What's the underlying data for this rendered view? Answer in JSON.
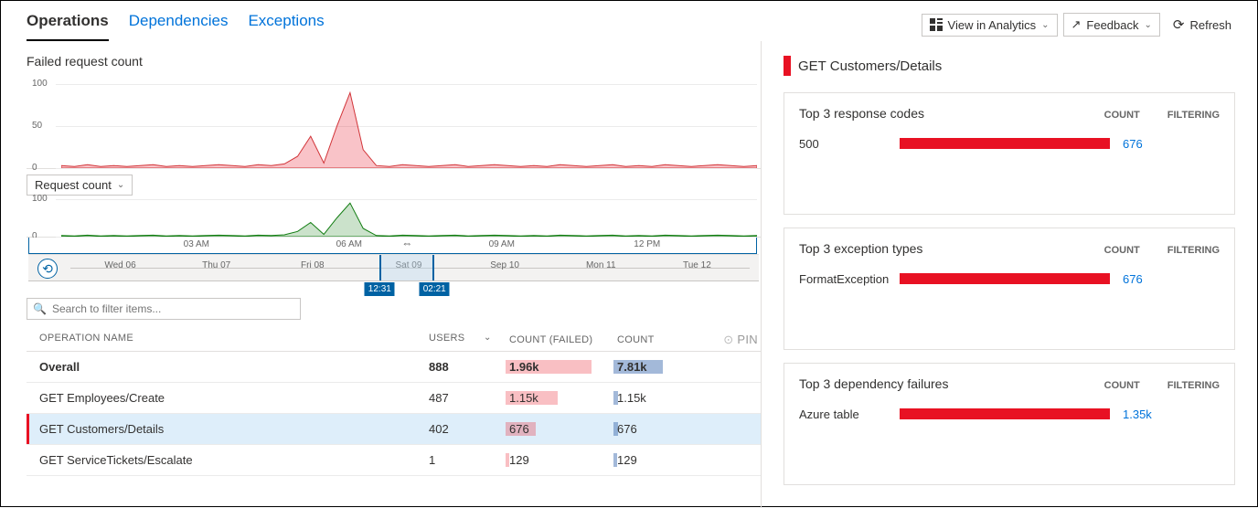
{
  "header": {
    "tabs": [
      {
        "label": "Operations",
        "active": true
      },
      {
        "label": "Dependencies",
        "active": false
      },
      {
        "label": "Exceptions",
        "active": false
      }
    ],
    "actions": {
      "view_analytics": "View in Analytics",
      "feedback": "Feedback",
      "refresh": "Refresh"
    }
  },
  "failed_chart": {
    "title": "Failed request count",
    "ylim": [
      0,
      110
    ],
    "yticks": [
      0,
      50,
      100
    ],
    "stroke": "#d13438",
    "fill": "rgba(232, 17, 35, 0.25)",
    "data": [
      3,
      2,
      4,
      2,
      3,
      2,
      3,
      4,
      2,
      3,
      2,
      3,
      4,
      3,
      2,
      4,
      3,
      5,
      14,
      38,
      6,
      50,
      90,
      22,
      3,
      2,
      4,
      3,
      2,
      3,
      4,
      2,
      3,
      4,
      3,
      2,
      3,
      2,
      4,
      3,
      2,
      3,
      4,
      2,
      3,
      2,
      4,
      3,
      2,
      3,
      4,
      3,
      2,
      3
    ]
  },
  "request_chart": {
    "dropdown_label": "Request count",
    "ylim": [
      0,
      110
    ],
    "yticks": [
      0,
      100
    ],
    "stroke": "#107c10",
    "fill": "rgba(16, 124, 16, 0.22)",
    "data": [
      3,
      2,
      4,
      2,
      3,
      2,
      3,
      4,
      2,
      3,
      2,
      3,
      4,
      3,
      2,
      4,
      3,
      5,
      14,
      38,
      6,
      50,
      90,
      22,
      3,
      2,
      4,
      3,
      2,
      3,
      4,
      2,
      3,
      4,
      3,
      2,
      3,
      2,
      4,
      3,
      2,
      3,
      4,
      2,
      3,
      2,
      4,
      3,
      2,
      3,
      4,
      3,
      2,
      3
    ],
    "xticks": [
      "03 AM",
      "06 AM",
      "09 AM",
      "12 PM"
    ],
    "xtick_pos": [
      0.23,
      0.44,
      0.65,
      0.85
    ]
  },
  "scrubber": {
    "days": [
      "Wed 06",
      "Thu 07",
      "Fri 08",
      "Sat 09",
      "Sep 10",
      "Mon 11",
      "Tue 12"
    ],
    "day_pos": [
      0.07,
      0.21,
      0.35,
      0.49,
      0.63,
      0.77,
      0.91
    ],
    "sel_start_pct": 48.1,
    "sel_end_pct": 55.6,
    "start_label": "12:31",
    "end_label": "02:21",
    "badge_bg": "#0062a3"
  },
  "search_placeholder": "Search to filter items...",
  "table": {
    "columns": {
      "name": "OPERATION NAME",
      "users": "USERS",
      "failed": "COUNT (FAILED)",
      "count": "COUNT",
      "pin": "PIN"
    },
    "rows": [
      {
        "name": "Overall",
        "users": "888",
        "failed": "1.96k",
        "count": "7.81k",
        "failed_w": 80,
        "count_w": 46,
        "overall": true
      },
      {
        "name": "GET Employees/Create",
        "users": "487",
        "failed": "1.15k",
        "count": "1.15k",
        "failed_w": 48,
        "count_w": 4
      },
      {
        "name": "GET Customers/Details",
        "users": "402",
        "failed": "676",
        "count": "676",
        "failed_w": 28,
        "count_w": 4,
        "selected": true
      },
      {
        "name": "GET ServiceTickets/Escalate",
        "users": "1",
        "failed": "129",
        "count": "129",
        "failed_w": 3,
        "count_w": 3
      }
    ],
    "failed_bar_color": "rgba(232, 17, 35, 0.27)",
    "count_bar_color": "rgba(50, 100, 170, 0.45)"
  },
  "detail": {
    "title": "GET Customers/Details",
    "accent": "#e81123",
    "cards": [
      {
        "title": "Top 3 response codes",
        "col_count": "COUNT",
        "col_filter": "FILTERING",
        "rows": [
          {
            "name": "500",
            "count": "676",
            "bar_pct": 100
          }
        ]
      },
      {
        "title": "Top 3 exception types",
        "col_count": "COUNT",
        "col_filter": "FILTERING",
        "rows": [
          {
            "name": "FormatException",
            "count": "676",
            "bar_pct": 100
          }
        ]
      },
      {
        "title": "Top 3 dependency failures",
        "col_count": "COUNT",
        "col_filter": "FILTERING",
        "rows": [
          {
            "name": "Azure table",
            "count": "1.35k",
            "bar_pct": 100
          }
        ]
      }
    ]
  }
}
